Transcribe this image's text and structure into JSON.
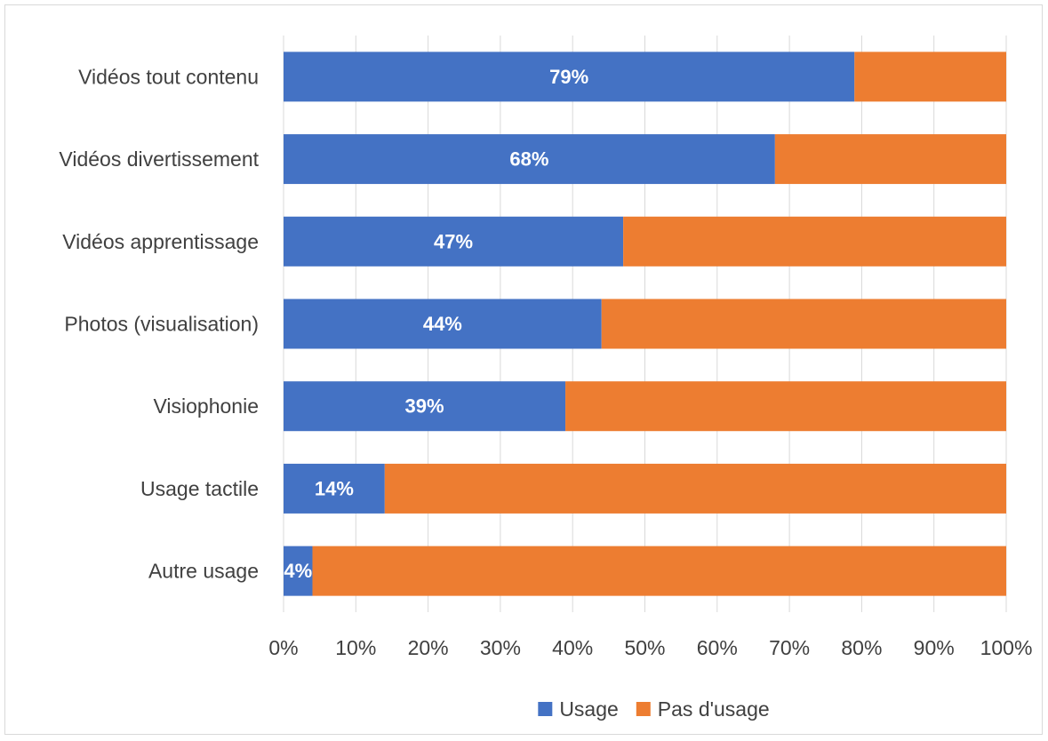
{
  "chart_data": {
    "type": "bar",
    "orientation": "horizontal",
    "stacked": true,
    "categories": [
      "Vidéos tout contenu",
      "Vidéos divertissement",
      "Vidéos apprentissage",
      "Photos (visualisation)",
      "Visiophonie",
      "Usage tactile",
      "Autre usage"
    ],
    "series": [
      {
        "name": "Usage",
        "color": "#4472c4",
        "values": [
          79,
          68,
          47,
          44,
          39,
          14,
          4
        ],
        "labels": [
          "79%",
          "68%",
          "47%",
          "44%",
          "39%",
          "14%",
          "4%"
        ]
      },
      {
        "name": "Pas d'usage",
        "color": "#ed7d31",
        "values": [
          21,
          32,
          53,
          56,
          61,
          86,
          96
        ]
      }
    ],
    "xlim": [
      0,
      100
    ],
    "x_ticks": [
      "0%",
      "10%",
      "20%",
      "30%",
      "40%",
      "50%",
      "60%",
      "70%",
      "80%",
      "90%",
      "100%"
    ],
    "grid": "vertical",
    "legend": "bottom",
    "title": "",
    "xlabel": "",
    "ylabel": ""
  }
}
